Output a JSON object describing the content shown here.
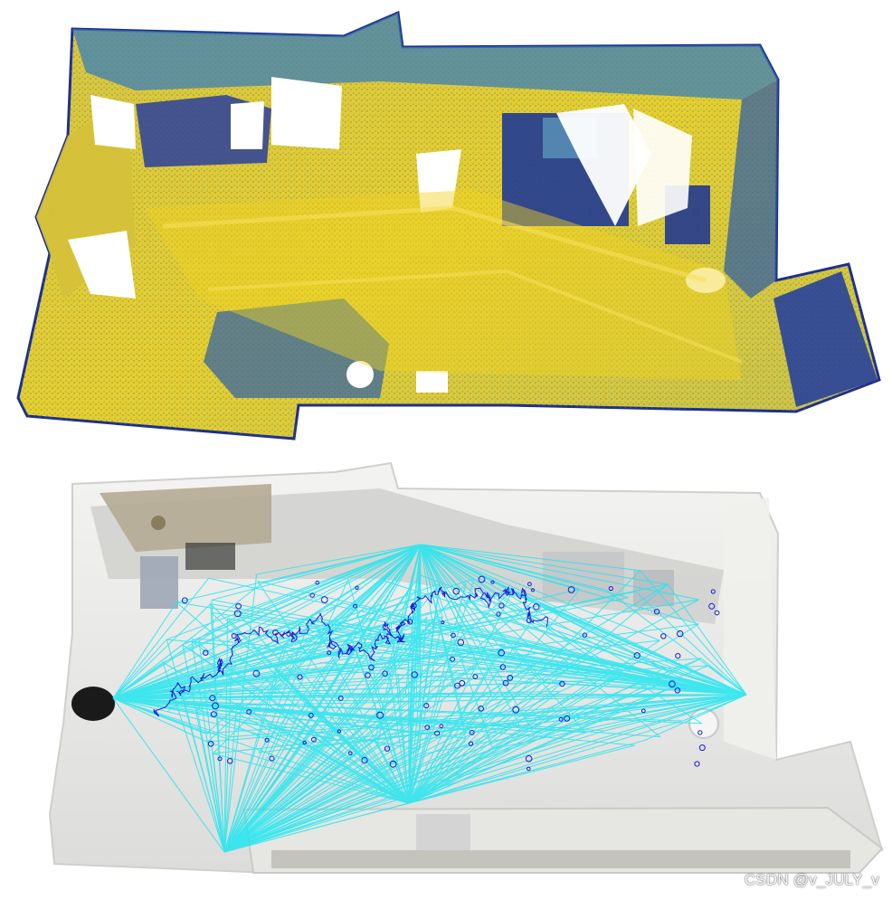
{
  "figure": {
    "panels": [
      {
        "id": "top",
        "kind": "colored-point-cloud",
        "colors": {
          "low": "#1f2f8f",
          "mid": "#2fa0b8",
          "high": "#f2d21b"
        }
      },
      {
        "id": "bottom",
        "kind": "rgb-reconstruction-with-pose-graph",
        "colors": {
          "edges": "#22e6f0",
          "trajectory": "#1a1ad6",
          "floor": "#e9e9e7"
        }
      }
    ]
  },
  "watermark": {
    "text": "CSDN @v_JULY_v"
  }
}
